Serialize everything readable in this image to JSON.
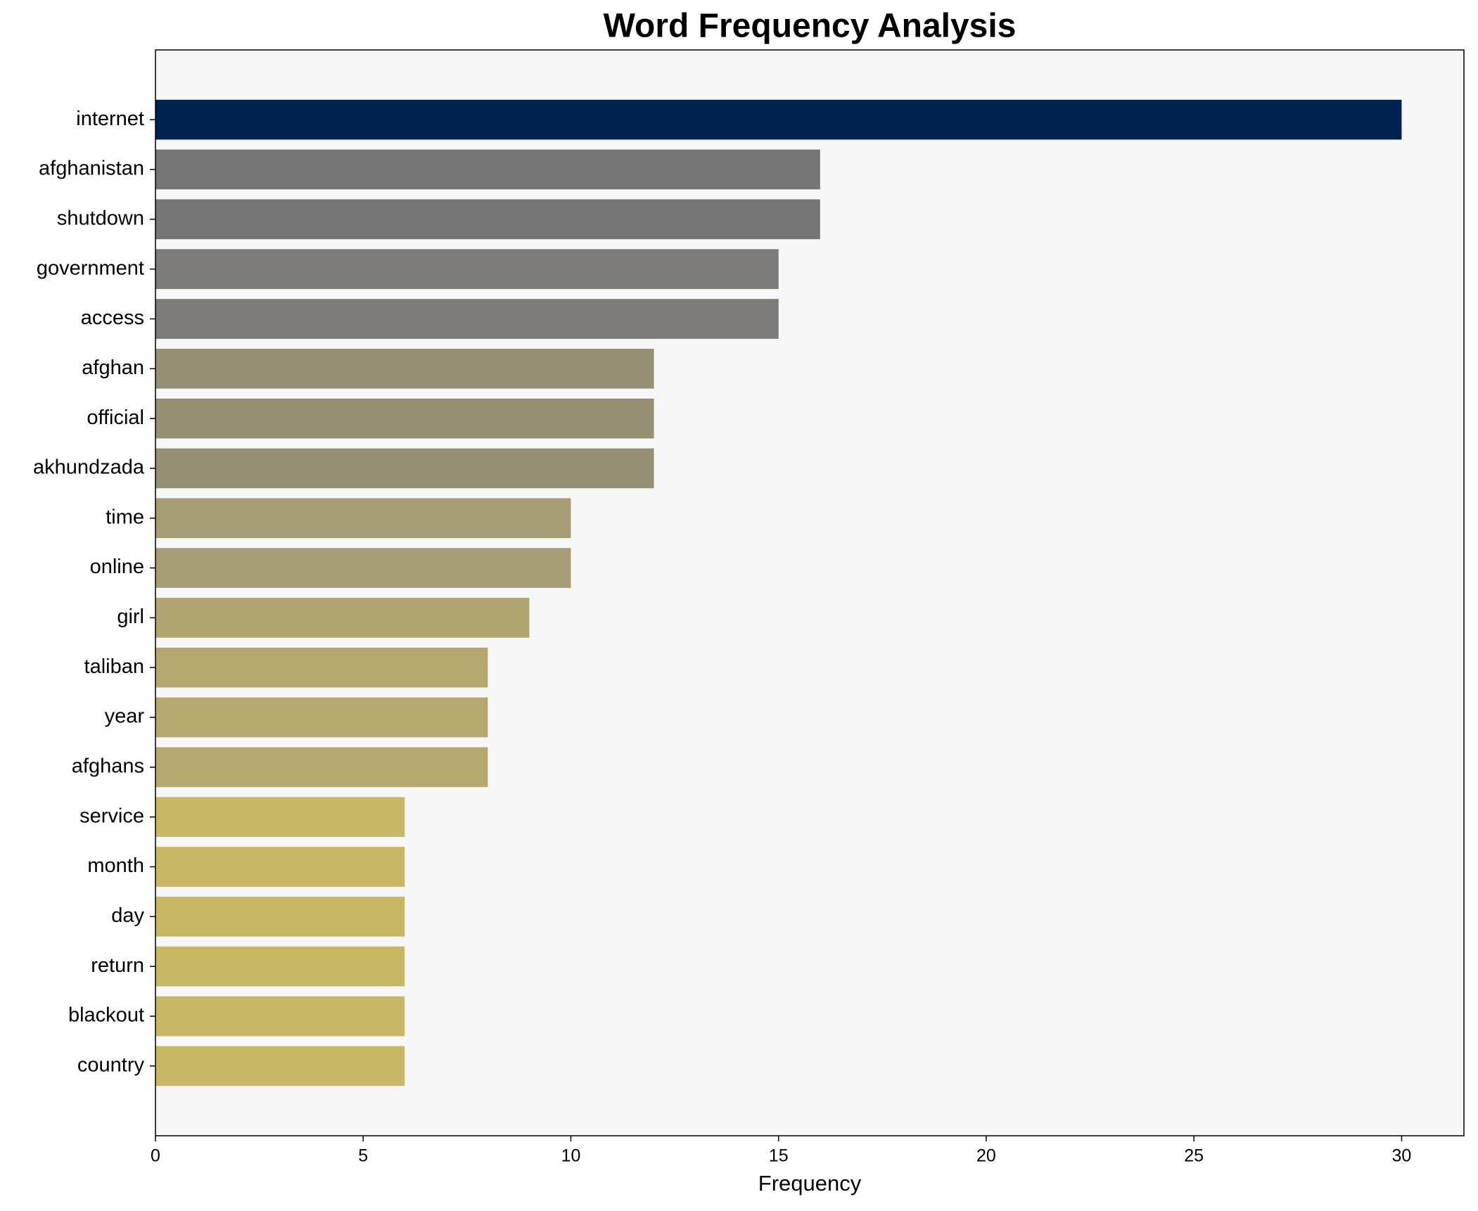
{
  "chart_data": {
    "type": "bar",
    "orientation": "horizontal",
    "title": "Word Frequency Analysis",
    "x_label": "Frequency",
    "categories": [
      "internet",
      "afghanistan",
      "shutdown",
      "government",
      "access",
      "afghan",
      "official",
      "akhundzada",
      "time",
      "online",
      "girl",
      "taliban",
      "year",
      "afghans",
      "service",
      "month",
      "day",
      "return",
      "blackout",
      "country"
    ],
    "values": [
      30,
      16,
      16,
      15,
      15,
      12,
      12,
      12,
      10,
      10,
      9,
      8,
      8,
      8,
      6,
      6,
      6,
      6,
      6,
      6
    ],
    "colors": [
      "#00224e",
      "#757575",
      "#757575",
      "#7c7b78",
      "#7c7b78",
      "#958f76",
      "#958f76",
      "#958f76",
      "#a69d75",
      "#a69d75",
      "#b1a570",
      "#b5a76e",
      "#b5a76e",
      "#b5a76e",
      "#c8b866",
      "#c8b866",
      "#c8b866",
      "#c8b866",
      "#c8b866",
      "#c8b866"
    ],
    "xlim": [
      0,
      31.5
    ],
    "xticks": [
      0,
      5,
      10,
      15,
      20,
      25,
      30
    ],
    "grid": false
  }
}
